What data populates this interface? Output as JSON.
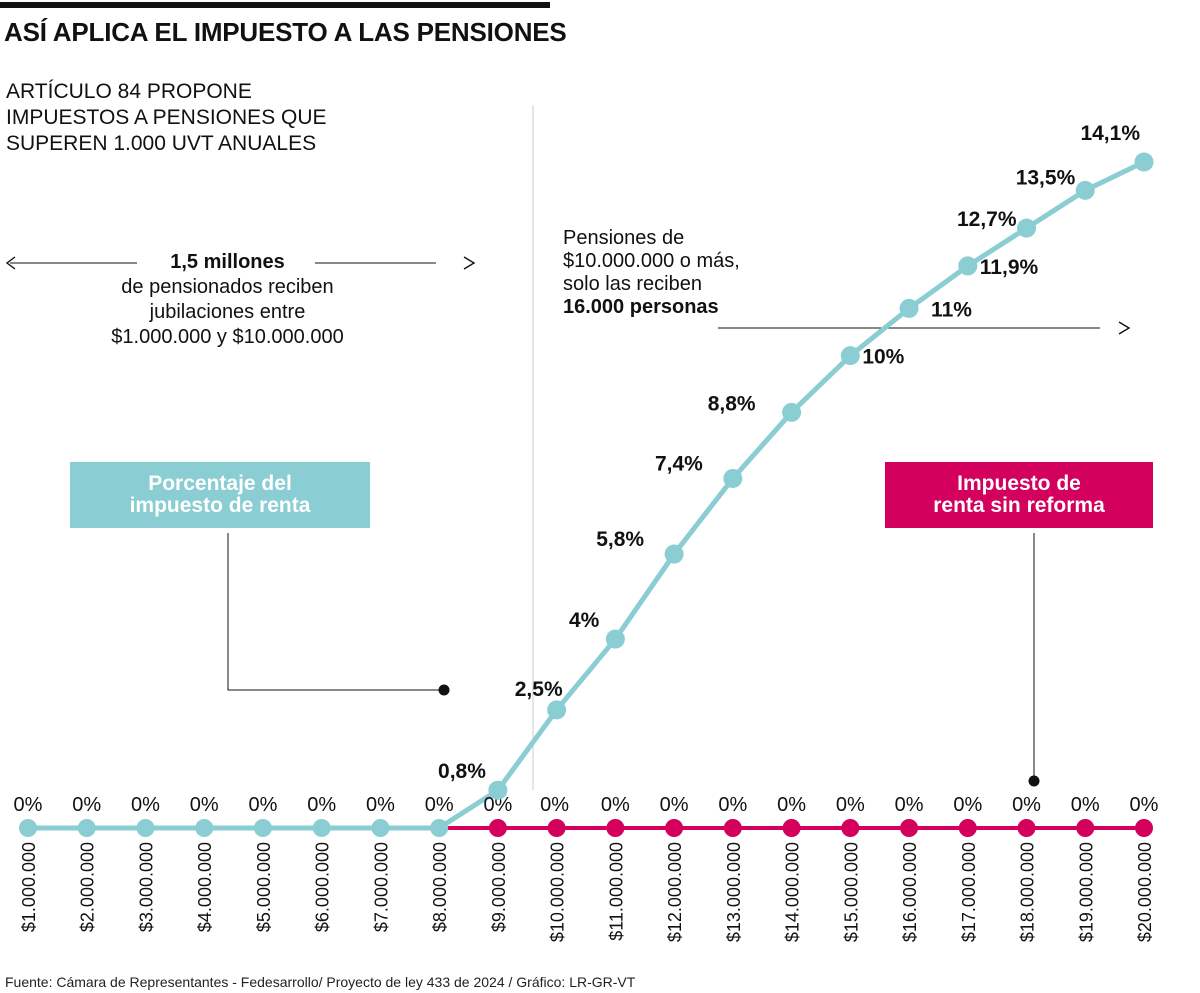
{
  "title": "ASÍ APLICA EL IMPUESTO A LAS PENSIONES",
  "subtitle": "ARTÍCULO 84 PROPONE\nIMPUESTOS A PENSIONES QUE\nSUPEREN 1.000 UVT ANUALES",
  "annotation_left": {
    "bold": "1,5 millones",
    "text": "de pensionados reciben jubilaciones entre $1.000.000 y $10.000.000"
  },
  "annotation_right": {
    "text": "Pensiones de $10.000.000 o más, solo las reciben",
    "bold": "16.000 personas"
  },
  "legend": {
    "blue_label": "Porcentaje del\nimpuesto de renta",
    "red_label": "Impuesto de\nrenta sin reforma"
  },
  "source": "Fuente: Cámara de Representantes - Fedesarrollo/ Proyecto de ley 433 de 2024 / Gráfico: LR-GR-VT",
  "colors": {
    "blue": "#8acdd3",
    "red": "#d3005e",
    "text": "#111111",
    "gridline": "#cccccc"
  },
  "chart_data": {
    "type": "line",
    "categories": [
      "$1.000.000",
      "$2.000.000",
      "$3.000.000",
      "$4.000.000",
      "$5.000.000",
      "$6.000.000",
      "$7.000.000",
      "$8.000.000",
      "$9.000.000",
      "$10.000.000",
      "$11.000.000",
      "$12.000.000",
      "$13.000.000",
      "$14.000.000",
      "$15.000.000",
      "$16.000.000",
      "$17.000.000",
      "$18.000.000",
      "$19.000.000",
      "$20.000.000"
    ],
    "series": [
      {
        "name": "Porcentaje del impuesto de renta",
        "color": "#8acdd3",
        "values": [
          0,
          0,
          0,
          0,
          0,
          0,
          0,
          0,
          0.8,
          2.5,
          4,
          5.8,
          7.4,
          8.8,
          10,
          11,
          11.9,
          12.7,
          13.5,
          14.1
        ],
        "labels": [
          "",
          "",
          "",
          "",
          "",
          "",
          "",
          "",
          "0,8%",
          "2,5%",
          "4%",
          "5,8%",
          "7,4%",
          "8,8%",
          "10%",
          "11%",
          "11,9%",
          "12,7%",
          "13,5%",
          "14,1%"
        ]
      },
      {
        "name": "Impuesto de renta sin reforma",
        "color": "#d3005e",
        "values": [
          0,
          0,
          0,
          0,
          0,
          0,
          0,
          0,
          0,
          0,
          0,
          0,
          0,
          0,
          0,
          0,
          0,
          0,
          0,
          0
        ],
        "labels": [
          "0%",
          "0%",
          "0%",
          "0%",
          "0%",
          "0%",
          "0%",
          "0%",
          "0%",
          "0%",
          "0%",
          "0%",
          "0%",
          "0%",
          "0%",
          "0%",
          "0%",
          "0%",
          "0%",
          "0%"
        ]
      }
    ],
    "ylim": [
      0,
      14.1
    ]
  }
}
